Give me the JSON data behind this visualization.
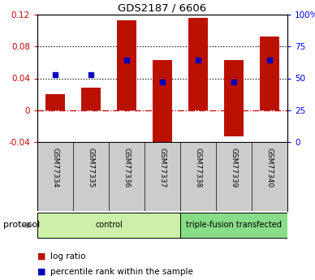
{
  "title": "GDS2187 / 6606",
  "samples": [
    "GSM77334",
    "GSM77335",
    "GSM77336",
    "GSM77337",
    "GSM77338",
    "GSM77339",
    "GSM77340"
  ],
  "log_ratio_bar_top": [
    0.02,
    0.028,
    0.113,
    0.063,
    0.116,
    0.063,
    0.092
  ],
  "log_ratio_bar_bottom": [
    0.0,
    0.0,
    0.0,
    -0.045,
    0.0,
    -0.033,
    0.0
  ],
  "percentile_rank_val": [
    0.045,
    0.045,
    0.063,
    0.035,
    0.063,
    0.035,
    0.063
  ],
  "ylim_left": [
    -0.04,
    0.12
  ],
  "ylim_right": [
    0,
    100
  ],
  "yticks_left": [
    -0.04,
    0.0,
    0.04,
    0.08,
    0.12
  ],
  "ytick_labels_left": [
    "-0.04",
    "0",
    "0.04",
    "0.08",
    "0.12"
  ],
  "yticks_right": [
    0,
    25,
    50,
    75,
    100
  ],
  "ytick_labels_right": [
    "0",
    "25",
    "50",
    "75",
    "100%"
  ],
  "hlines_dotted": [
    0.04,
    0.08
  ],
  "hline_zero_color": "#cc0000",
  "bar_color": "#bb1100",
  "dot_color": "#0000bb",
  "groups": [
    {
      "label": "control",
      "start": 0,
      "end": 3,
      "color": "#ccf0aa"
    },
    {
      "label": "triple-fusion transfected",
      "start": 4,
      "end": 6,
      "color": "#88dd88"
    }
  ],
  "protocol_label": "protocol",
  "legend_items": [
    {
      "color": "#bb1100",
      "label": "log ratio"
    },
    {
      "color": "#0000bb",
      "label": "percentile rank within the sample"
    }
  ],
  "background_color": "#ffffff",
  "tick_area_color": "#cccccc"
}
